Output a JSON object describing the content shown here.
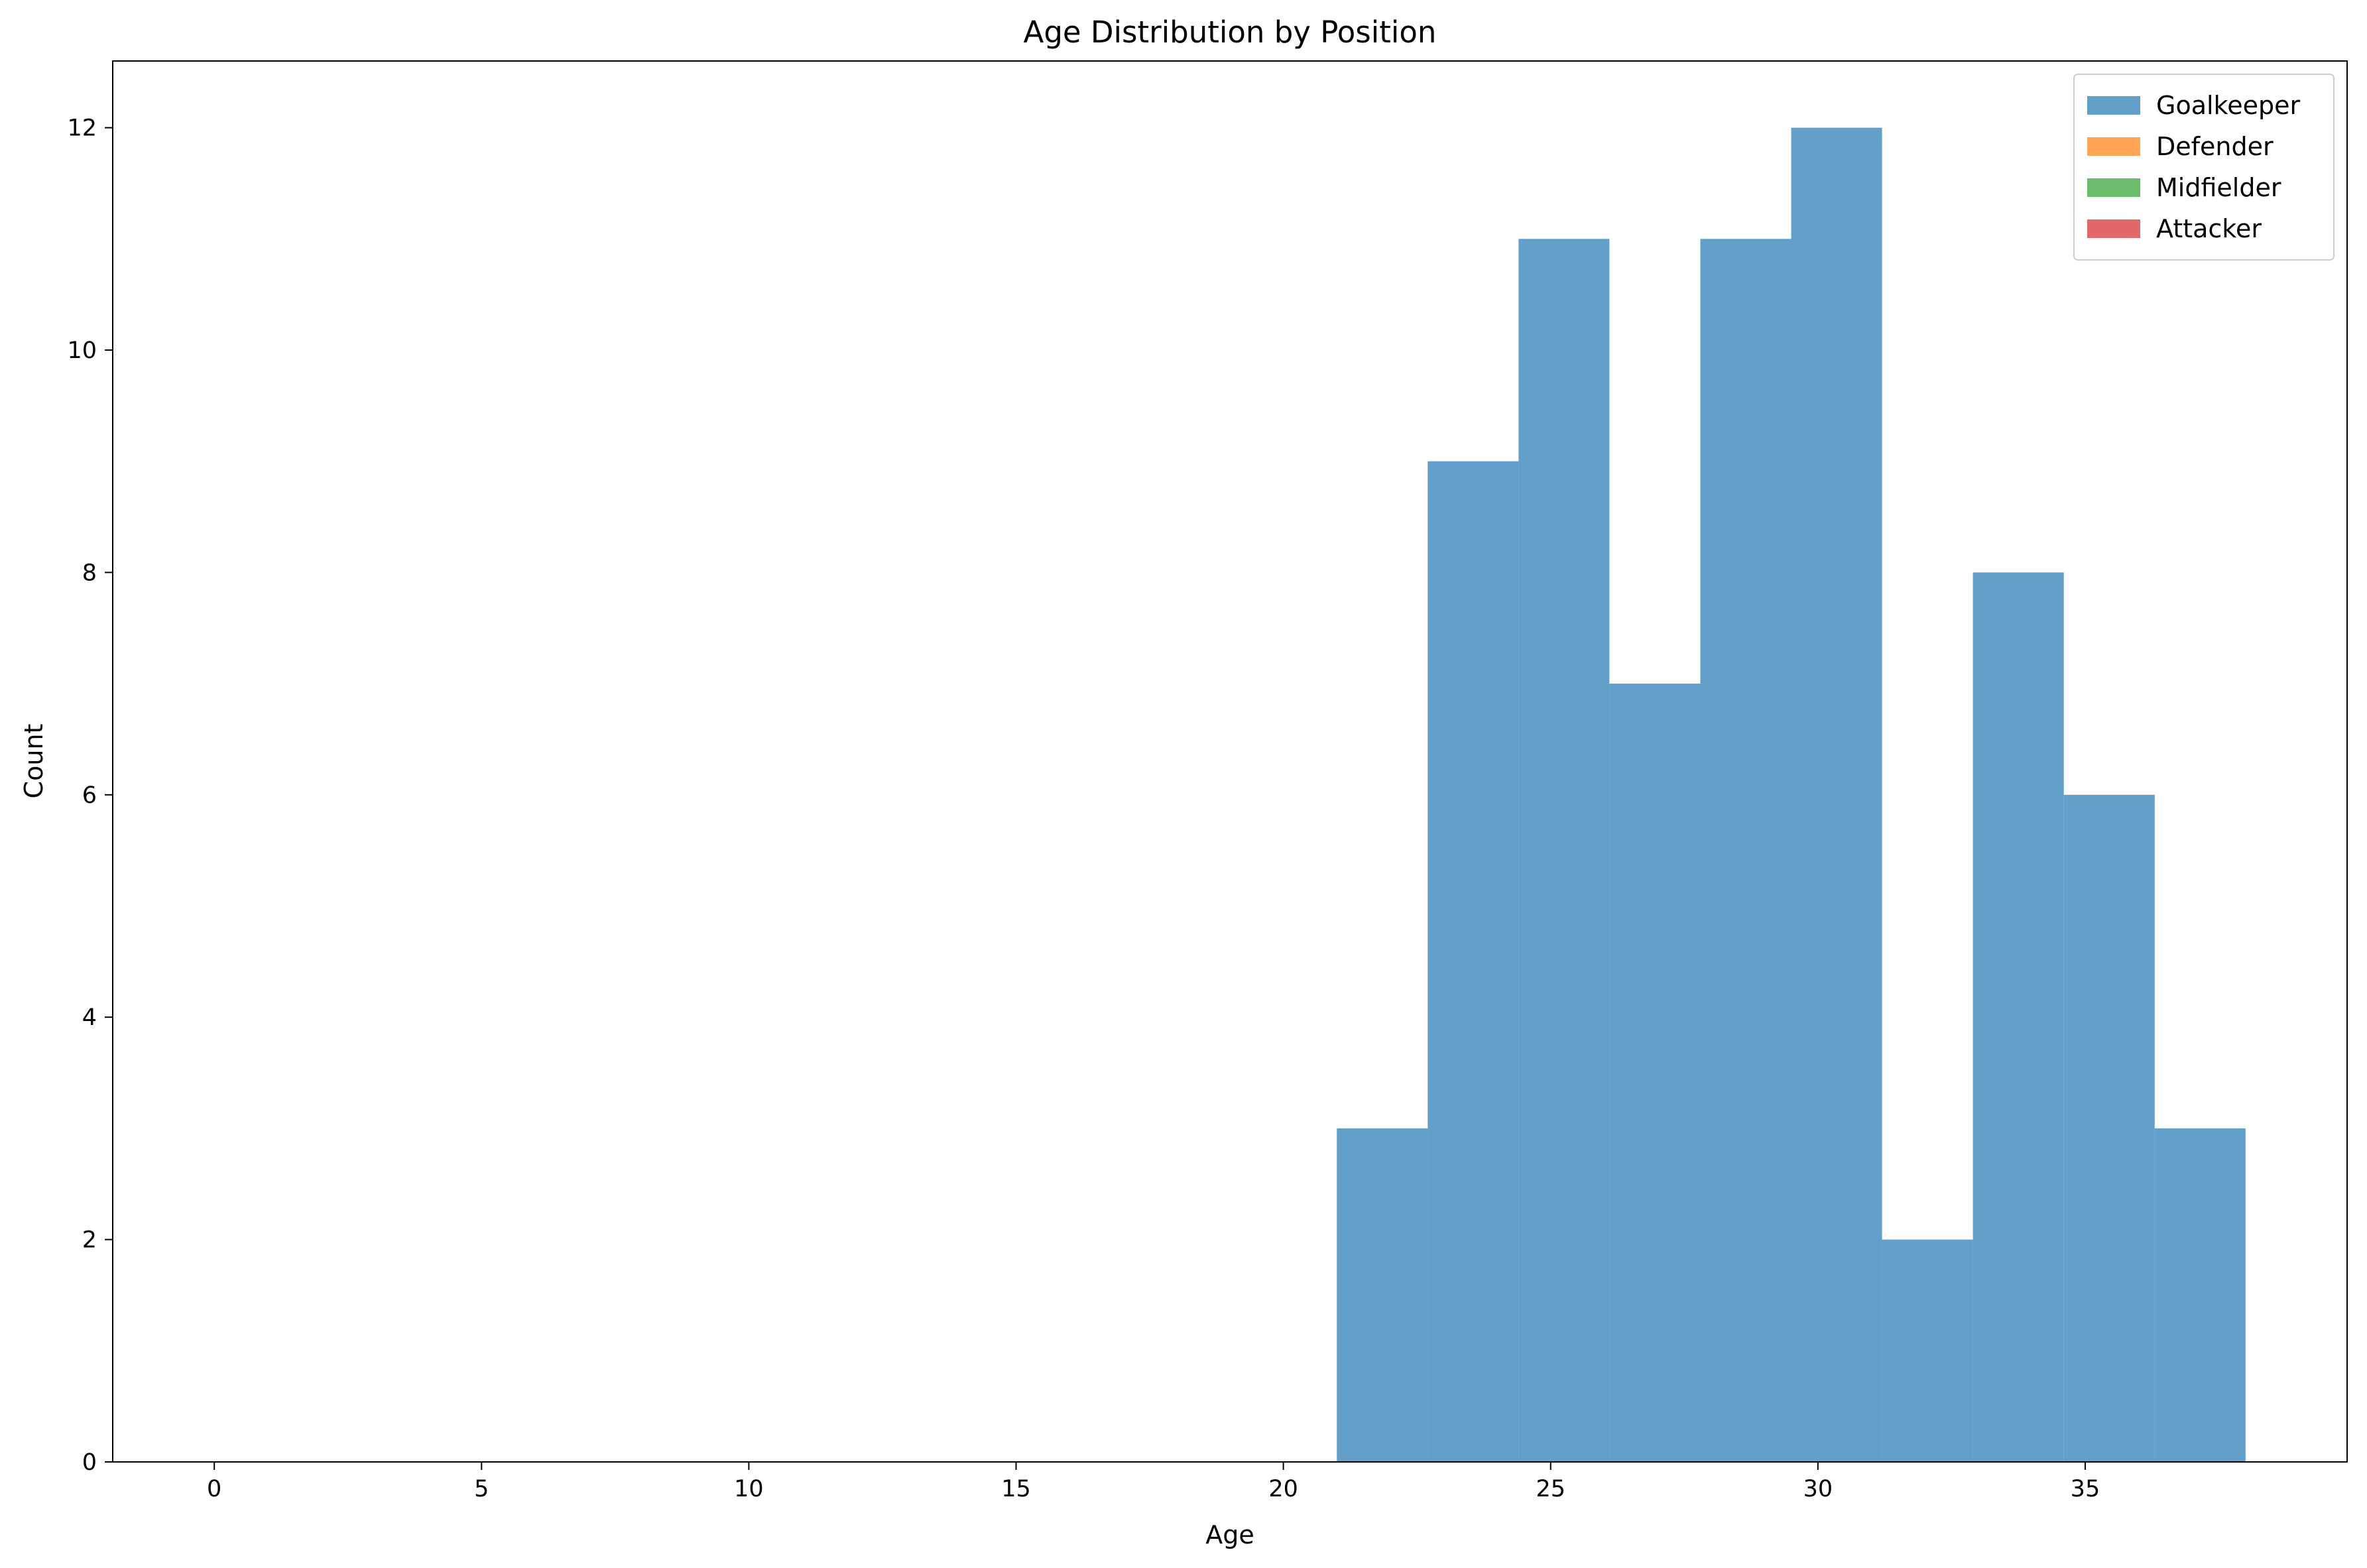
{
  "chart_data": {
    "type": "bar",
    "title": "Age Distribution by Position",
    "xlabel": "Age",
    "ylabel": "Count",
    "xlim": [
      -1.9,
      39.9
    ],
    "ylim": [
      0,
      12.6
    ],
    "xticks": [
      0,
      5,
      10,
      15,
      20,
      25,
      30,
      35
    ],
    "yticks": [
      0,
      2,
      4,
      6,
      8,
      10,
      12
    ],
    "grid": false,
    "legend_position": "top-right",
    "series": [
      {
        "name": "Goalkeeper",
        "color": "#1f77b4",
        "bins": [
          {
            "x0": 21.0,
            "x1": 22.7,
            "count": 3
          },
          {
            "x0": 22.7,
            "x1": 24.4,
            "count": 9
          },
          {
            "x0": 24.4,
            "x1": 26.1,
            "count": 11
          },
          {
            "x0": 26.1,
            "x1": 27.8,
            "count": 7
          },
          {
            "x0": 27.8,
            "x1": 29.5,
            "count": 11
          },
          {
            "x0": 29.5,
            "x1": 31.2,
            "count": 12
          },
          {
            "x0": 31.2,
            "x1": 32.9,
            "count": 2
          },
          {
            "x0": 32.9,
            "x1": 34.6,
            "count": 8
          },
          {
            "x0": 34.6,
            "x1": 36.3,
            "count": 6
          },
          {
            "x0": 36.3,
            "x1": 38.0,
            "count": 3
          }
        ]
      },
      {
        "name": "Defender",
        "color": "#ff7f0e",
        "bins": [
          {
            "x0": 0,
            "x1": 38.0,
            "count": 0
          }
        ]
      },
      {
        "name": "Midfielder",
        "color": "#2ca02c",
        "bins": [
          {
            "x0": 0,
            "x1": 38.0,
            "count": 0
          }
        ]
      },
      {
        "name": "Attacker",
        "color": "#d62728",
        "bins": [
          {
            "x0": 0,
            "x1": 38.0,
            "count": 0
          }
        ]
      }
    ]
  }
}
